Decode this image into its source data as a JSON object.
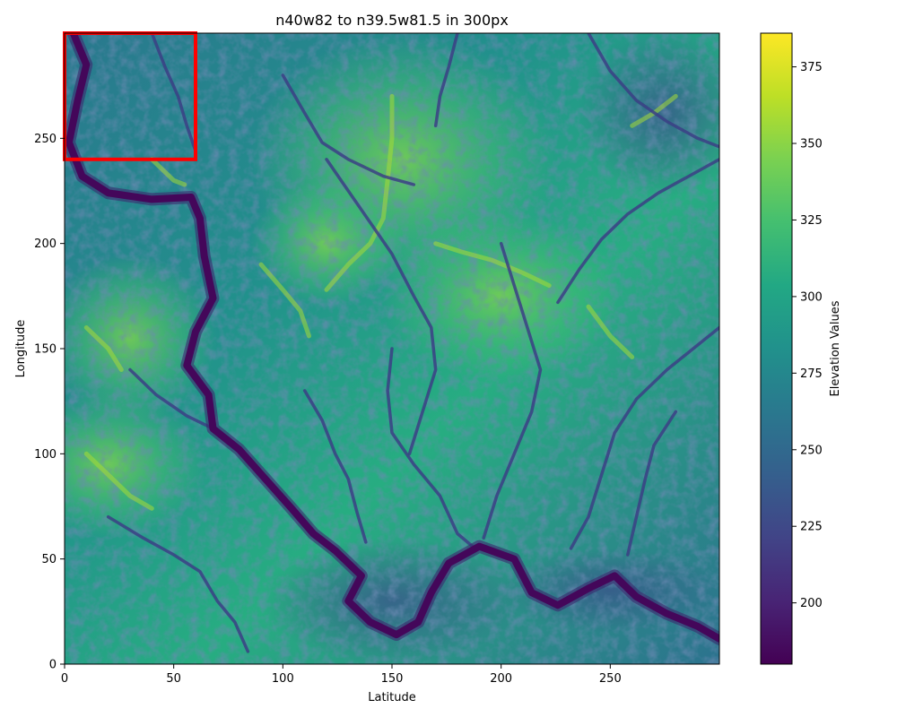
{
  "chart_data": {
    "type": "heatmap",
    "title": "n40w82 to n39.5w81.5 in 300px",
    "xlabel": "Latitude",
    "ylabel": "Longitude",
    "xlim": [
      0,
      300
    ],
    "ylim": [
      0,
      300
    ],
    "xticks": [
      0,
      50,
      100,
      150,
      200,
      250
    ],
    "yticks": [
      0,
      50,
      100,
      150,
      200,
      250
    ],
    "colorbar": {
      "label": "Elevation Values",
      "colormap": "viridis",
      "range": [
        180,
        386
      ],
      "ticks": [
        200,
        225,
        250,
        275,
        300,
        325,
        350,
        375
      ]
    },
    "highlight_box": {
      "x": [
        0,
        60
      ],
      "y": [
        240,
        300
      ],
      "color": "#ff0000"
    },
    "river_paths": [
      {
        "name": "main-river",
        "points": [
          [
            4,
            300
          ],
          [
            10,
            285
          ],
          [
            6,
            268
          ],
          [
            2,
            248
          ],
          [
            8,
            232
          ],
          [
            20,
            224
          ],
          [
            40,
            221
          ],
          [
            58,
            222
          ],
          [
            62,
            212
          ],
          [
            64,
            194
          ],
          [
            68,
            174
          ],
          [
            60,
            158
          ],
          [
            56,
            142
          ],
          [
            66,
            128
          ],
          [
            68,
            112
          ],
          [
            80,
            102
          ],
          [
            92,
            88
          ],
          [
            104,
            74
          ],
          [
            114,
            62
          ],
          [
            124,
            54
          ],
          [
            136,
            42
          ],
          [
            130,
            30
          ],
          [
            140,
            20
          ],
          [
            152,
            14
          ],
          [
            162,
            20
          ],
          [
            168,
            34
          ],
          [
            176,
            48
          ],
          [
            190,
            56
          ],
          [
            206,
            50
          ],
          [
            214,
            34
          ],
          [
            226,
            28
          ],
          [
            240,
            36
          ],
          [
            252,
            42
          ],
          [
            262,
            32
          ],
          [
            276,
            24
          ],
          [
            290,
            18
          ],
          [
            300,
            12
          ]
        ]
      }
    ],
    "streams": [
      [
        [
          150,
          150
        ],
        [
          148,
          130
        ],
        [
          150,
          110
        ],
        [
          160,
          95
        ],
        [
          172,
          80
        ],
        [
          180,
          62
        ],
        [
          188,
          55
        ]
      ],
      [
        [
          120,
          240
        ],
        [
          130,
          225
        ],
        [
          140,
          210
        ],
        [
          150,
          195
        ],
        [
          160,
          175
        ],
        [
          168,
          160
        ],
        [
          170,
          140
        ],
        [
          164,
          120
        ],
        [
          158,
          100
        ]
      ],
      [
        [
          200,
          200
        ],
        [
          206,
          180
        ],
        [
          212,
          160
        ],
        [
          218,
          140
        ],
        [
          214,
          120
        ],
        [
          206,
          100
        ],
        [
          198,
          80
        ],
        [
          192,
          60
        ]
      ],
      [
        [
          300,
          160
        ],
        [
          288,
          150
        ],
        [
          276,
          140
        ],
        [
          262,
          126
        ],
        [
          252,
          110
        ],
        [
          246,
          90
        ],
        [
          240,
          70
        ],
        [
          232,
          55
        ]
      ],
      [
        [
          100,
          280
        ],
        [
          110,
          262
        ],
        [
          118,
          248
        ],
        [
          130,
          240
        ],
        [
          146,
          232
        ],
        [
          160,
          228
        ]
      ],
      [
        [
          300,
          240
        ],
        [
          286,
          232
        ],
        [
          272,
          224
        ],
        [
          258,
          214
        ],
        [
          246,
          202
        ],
        [
          236,
          188
        ],
        [
          226,
          172
        ]
      ],
      [
        [
          30,
          140
        ],
        [
          42,
          128
        ],
        [
          56,
          118
        ],
        [
          68,
          112
        ]
      ],
      [
        [
          20,
          70
        ],
        [
          36,
          60
        ],
        [
          50,
          52
        ],
        [
          62,
          44
        ],
        [
          70,
          30
        ],
        [
          78,
          20
        ],
        [
          84,
          6
        ]
      ],
      [
        [
          240,
          300
        ],
        [
          250,
          282
        ],
        [
          262,
          268
        ],
        [
          276,
          258
        ],
        [
          290,
          250
        ],
        [
          300,
          246
        ]
      ],
      [
        [
          110,
          130
        ],
        [
          118,
          116
        ],
        [
          124,
          100
        ],
        [
          130,
          88
        ],
        [
          134,
          72
        ],
        [
          138,
          58
        ]
      ],
      [
        [
          280,
          120
        ],
        [
          270,
          104
        ],
        [
          266,
          88
        ],
        [
          262,
          70
        ],
        [
          258,
          52
        ]
      ],
      [
        [
          180,
          300
        ],
        [
          176,
          284
        ],
        [
          172,
          270
        ],
        [
          170,
          256
        ]
      ],
      [
        [
          40,
          300
        ],
        [
          46,
          284
        ],
        [
          52,
          270
        ],
        [
          56,
          256
        ],
        [
          60,
          244
        ]
      ]
    ],
    "ridges": [
      [
        [
          150,
          270
        ],
        [
          150,
          250
        ],
        [
          148,
          230
        ],
        [
          146,
          212
        ],
        [
          140,
          200
        ],
        [
          130,
          190
        ],
        [
          120,
          178
        ]
      ],
      [
        [
          170,
          200
        ],
        [
          182,
          196
        ],
        [
          196,
          192
        ],
        [
          210,
          186
        ],
        [
          222,
          180
        ]
      ],
      [
        [
          90,
          190
        ],
        [
          100,
          178
        ],
        [
          108,
          168
        ],
        [
          112,
          156
        ]
      ],
      [
        [
          10,
          160
        ],
        [
          20,
          150
        ],
        [
          26,
          140
        ]
      ],
      [
        [
          240,
          170
        ],
        [
          250,
          156
        ],
        [
          260,
          146
        ]
      ],
      [
        [
          280,
          270
        ],
        [
          270,
          262
        ],
        [
          260,
          256
        ]
      ],
      [
        [
          10,
          100
        ],
        [
          20,
          90
        ],
        [
          30,
          80
        ],
        [
          40,
          74
        ]
      ],
      [
        [
          40,
          240
        ],
        [
          50,
          230
        ],
        [
          55,
          228
        ]
      ]
    ]
  }
}
